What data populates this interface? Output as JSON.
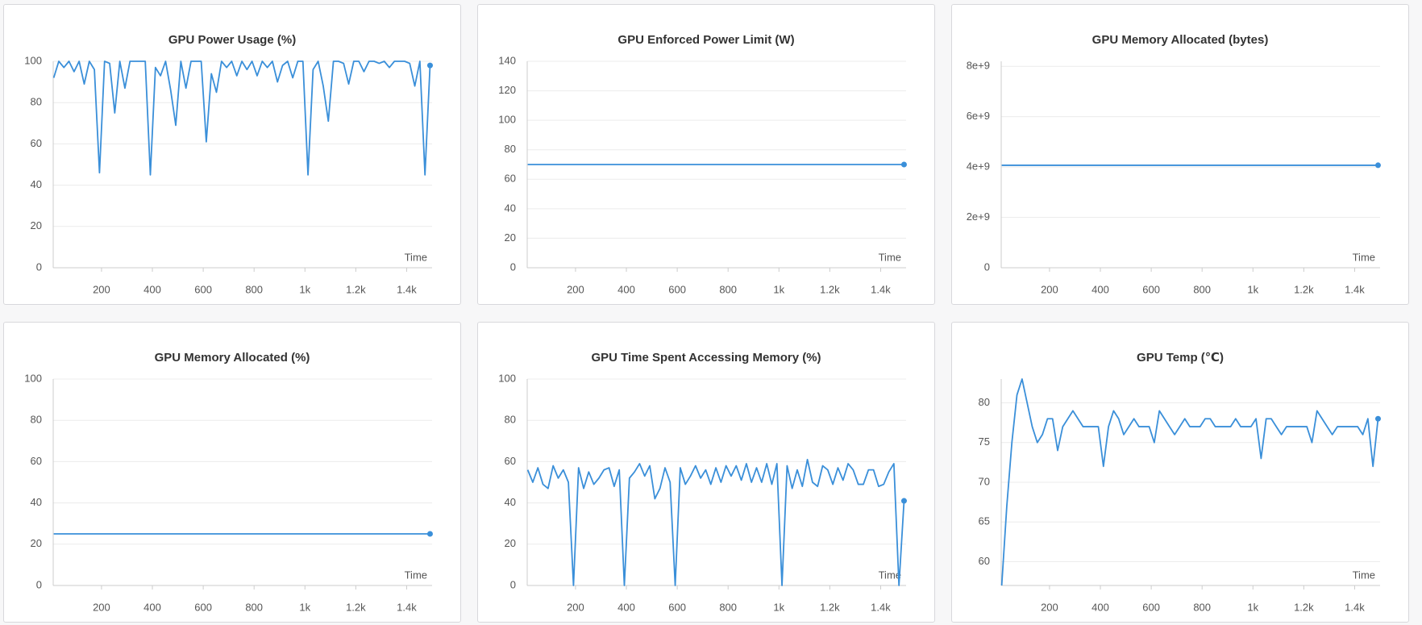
{
  "chart_data": [
    {
      "type": "line",
      "title": "GPU Power Usage (%)",
      "x_label": "Time",
      "color": "#3a8fd9",
      "grid": true,
      "x": [
        12,
        32,
        52,
        72,
        92,
        112,
        132,
        152,
        172,
        192,
        212,
        232,
        252,
        272,
        292,
        312,
        332,
        352,
        372,
        392,
        412,
        432,
        452,
        472,
        492,
        512,
        532,
        552,
        572,
        592,
        612,
        632,
        652,
        672,
        692,
        712,
        732,
        752,
        772,
        792,
        812,
        832,
        852,
        872,
        892,
        912,
        932,
        952,
        972,
        992,
        1012,
        1032,
        1052,
        1072,
        1092,
        1112,
        1132,
        1152,
        1172,
        1192,
        1212,
        1232,
        1252,
        1272,
        1292,
        1312,
        1332,
        1352,
        1372,
        1392,
        1412,
        1432,
        1452,
        1472,
        1492
      ],
      "values": [
        92,
        100,
        97,
        100,
        95,
        100,
        89,
        100,
        96,
        46,
        100,
        99,
        75,
        100,
        87,
        100,
        100,
        100,
        100,
        45,
        97,
        93,
        100,
        86,
        69,
        100,
        87,
        100,
        100,
        100,
        61,
        94,
        85,
        100,
        97,
        100,
        93,
        100,
        96,
        100,
        93,
        100,
        97,
        100,
        90,
        98,
        100,
        92,
        100,
        100,
        45,
        96,
        100,
        88,
        71,
        100,
        100,
        99,
        89,
        100,
        100,
        95,
        100,
        100,
        99,
        100,
        97,
        100,
        100,
        100,
        99,
        88,
        100,
        45,
        98
      ],
      "xlim": [
        10,
        1500
      ],
      "xticks": [
        200,
        400,
        600,
        800,
        {
          "value": 1000,
          "label": "1k"
        },
        {
          "value": 1200,
          "label": "1.2k"
        },
        {
          "value": 1400,
          "label": "1.4k"
        }
      ],
      "ylim": [
        0,
        100
      ],
      "yticks": [
        0,
        20,
        40,
        60,
        80,
        100
      ]
    },
    {
      "type": "line",
      "title": "GPU Enforced Power Limit (W)",
      "x_label": "Time",
      "color": "#3a8fd9",
      "grid": true,
      "x": [
        12,
        1492
      ],
      "values": [
        70,
        70
      ],
      "xlim": [
        10,
        1500
      ],
      "xticks": [
        200,
        400,
        600,
        800,
        {
          "value": 1000,
          "label": "1k"
        },
        {
          "value": 1200,
          "label": "1.2k"
        },
        {
          "value": 1400,
          "label": "1.4k"
        }
      ],
      "ylim": [
        0,
        140
      ],
      "yticks": [
        0,
        20,
        40,
        60,
        80,
        100,
        120,
        140
      ]
    },
    {
      "type": "line",
      "title": "GPU Memory Allocated (bytes)",
      "x_label": "Time",
      "color": "#3a8fd9",
      "grid": true,
      "x": [
        12,
        1492
      ],
      "values": [
        4070000000,
        4070000000
      ],
      "xlim": [
        10,
        1500
      ],
      "xticks": [
        200,
        400,
        600,
        800,
        {
          "value": 1000,
          "label": "1k"
        },
        {
          "value": 1200,
          "label": "1.2k"
        },
        {
          "value": 1400,
          "label": "1.4k"
        }
      ],
      "ylim": [
        0,
        8200000000
      ],
      "yticks": [
        0,
        {
          "value": 2000000000,
          "label": "2e+9"
        },
        {
          "value": 4000000000,
          "label": "4e+9"
        },
        {
          "value": 6000000000,
          "label": "6e+9"
        },
        {
          "value": 8000000000,
          "label": "8e+9"
        }
      ]
    },
    {
      "type": "line",
      "title": "GPU Memory Allocated (%)",
      "x_label": "Time",
      "color": "#3a8fd9",
      "grid": true,
      "x": [
        12,
        1492
      ],
      "values": [
        25,
        25
      ],
      "xlim": [
        10,
        1500
      ],
      "xticks": [
        200,
        400,
        600,
        800,
        {
          "value": 1000,
          "label": "1k"
        },
        {
          "value": 1200,
          "label": "1.2k"
        },
        {
          "value": 1400,
          "label": "1.4k"
        }
      ],
      "ylim": [
        0,
        100
      ],
      "yticks": [
        0,
        20,
        40,
        60,
        80,
        100
      ]
    },
    {
      "type": "line",
      "title": "GPU Time Spent Accessing Memory (%)",
      "x_label": "Time",
      "color": "#3a8fd9",
      "grid": true,
      "x": [
        12,
        32,
        52,
        72,
        92,
        112,
        132,
        152,
        172,
        192,
        212,
        232,
        252,
        272,
        292,
        312,
        332,
        352,
        372,
        392,
        412,
        432,
        452,
        472,
        492,
        512,
        532,
        552,
        572,
        592,
        612,
        632,
        652,
        672,
        692,
        712,
        732,
        752,
        772,
        792,
        812,
        832,
        852,
        872,
        892,
        912,
        932,
        952,
        972,
        992,
        1012,
        1032,
        1052,
        1072,
        1092,
        1112,
        1132,
        1152,
        1172,
        1192,
        1212,
        1232,
        1252,
        1272,
        1292,
        1312,
        1332,
        1352,
        1372,
        1392,
        1412,
        1432,
        1452,
        1472,
        1492
      ],
      "values": [
        56,
        50,
        57,
        49,
        47,
        58,
        52,
        56,
        50,
        0,
        57,
        47,
        55,
        49,
        52,
        56,
        57,
        48,
        56,
        0,
        52,
        55,
        59,
        53,
        58,
        42,
        47,
        57,
        50,
        0,
        57,
        49,
        53,
        58,
        52,
        56,
        49,
        57,
        50,
        58,
        53,
        58,
        51,
        59,
        50,
        57,
        50,
        59,
        49,
        59,
        0,
        58,
        47,
        56,
        48,
        61,
        50,
        48,
        58,
        56,
        49,
        57,
        51,
        59,
        56,
        49,
        49,
        56,
        56,
        48,
        49,
        55,
        59,
        0,
        41
      ],
      "xlim": [
        10,
        1500
      ],
      "xticks": [
        200,
        400,
        600,
        800,
        {
          "value": 1000,
          "label": "1k"
        },
        {
          "value": 1200,
          "label": "1.2k"
        },
        {
          "value": 1400,
          "label": "1.4k"
        }
      ],
      "ylim": [
        0,
        100
      ],
      "yticks": [
        0,
        20,
        40,
        60,
        80,
        100
      ]
    },
    {
      "type": "line",
      "title": "GPU Temp (℃)",
      "x_label": "Time",
      "color": "#3a8fd9",
      "grid": true,
      "x": [
        12,
        32,
        52,
        72,
        92,
        112,
        132,
        152,
        172,
        192,
        212,
        232,
        252,
        272,
        292,
        312,
        332,
        352,
        372,
        392,
        412,
        432,
        452,
        472,
        492,
        512,
        532,
        552,
        572,
        592,
        612,
        632,
        652,
        672,
        692,
        712,
        732,
        752,
        772,
        792,
        812,
        832,
        852,
        872,
        892,
        912,
        932,
        952,
        972,
        992,
        1012,
        1032,
        1052,
        1072,
        1092,
        1112,
        1132,
        1152,
        1172,
        1192,
        1212,
        1232,
        1252,
        1272,
        1292,
        1312,
        1332,
        1352,
        1372,
        1392,
        1412,
        1432,
        1452,
        1472,
        1492
      ],
      "values": [
        57,
        67,
        75,
        81,
        83,
        80,
        77,
        75,
        76,
        78,
        78,
        74,
        77,
        78,
        79,
        78,
        77,
        77,
        77,
        77,
        72,
        77,
        79,
        78,
        76,
        77,
        78,
        77,
        77,
        77,
        75,
        79,
        78,
        77,
        76,
        77,
        78,
        77,
        77,
        77,
        78,
        78,
        77,
        77,
        77,
        77,
        78,
        77,
        77,
        77,
        78,
        73,
        78,
        78,
        77,
        76,
        77,
        77,
        77,
        77,
        77,
        75,
        79,
        78,
        77,
        76,
        77,
        77,
        77,
        77,
        77,
        76,
        78,
        72,
        78
      ],
      "xlim": [
        10,
        1500
      ],
      "xticks": [
        200,
        400,
        600,
        800,
        {
          "value": 1000,
          "label": "1k"
        },
        {
          "value": 1200,
          "label": "1.2k"
        },
        {
          "value": 1400,
          "label": "1.4k"
        }
      ],
      "ylim": [
        57,
        83
      ],
      "yticks": [
        60,
        65,
        70,
        75,
        80
      ]
    }
  ]
}
